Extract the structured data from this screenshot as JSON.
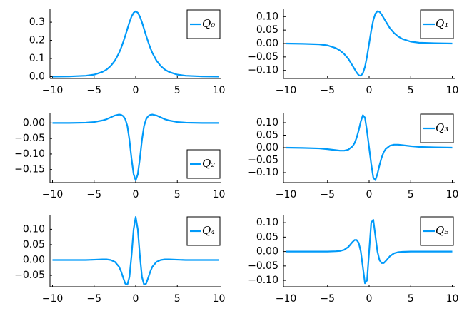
{
  "chart_data": [
    {
      "type": "line",
      "x": [
        -10,
        -8,
        -6,
        -5,
        -4,
        -3.5,
        -3,
        -2.5,
        -2,
        -1.75,
        -1.5,
        -1.25,
        -1,
        -0.75,
        -0.5,
        -0.25,
        0,
        0.25,
        0.5,
        0.75,
        1,
        1.25,
        1.5,
        1.75,
        2,
        2.5,
        3,
        3.5,
        4,
        5,
        6,
        8,
        10
      ],
      "series": [
        {
          "name": "Q₀",
          "color": "#009af9",
          "values": [
            0,
            0.001,
            0.005,
            0.011,
            0.026,
            0.039,
            0.059,
            0.088,
            0.131,
            0.159,
            0.191,
            0.226,
            0.263,
            0.3,
            0.331,
            0.352,
            0.36,
            0.352,
            0.331,
            0.3,
            0.263,
            0.226,
            0.191,
            0.159,
            0.131,
            0.088,
            0.059,
            0.039,
            0.026,
            0.011,
            0.005,
            0.001,
            0
          ]
        }
      ],
      "xlim": [
        -10.3,
        10.3
      ],
      "xticks": [
        {
          "value": -10,
          "label": "−10"
        },
        {
          "value": -5,
          "label": "−5"
        },
        0,
        5,
        10
      ],
      "ylim": [
        -0.01,
        0.375
      ],
      "yticks": [
        {
          "value": 0,
          "label": "0.0"
        },
        0.1,
        0.2,
        0.3
      ],
      "grid": false,
      "legend": "top-right"
    },
    {
      "type": "line",
      "x": [
        -10,
        -8,
        -6,
        -5,
        -4,
        -3.5,
        -3,
        -2.5,
        -2,
        -1.75,
        -1.5,
        -1.25,
        -1,
        -0.75,
        -0.5,
        -0.25,
        0,
        0.25,
        0.5,
        0.75,
        1,
        1.25,
        1.5,
        1.75,
        2,
        2.5,
        3,
        3.5,
        4,
        5,
        6,
        8,
        10
      ],
      "series": [
        {
          "name": "Q₁",
          "color": "#009af9",
          "values": [
            0,
            -0.001,
            -0.003,
            -0.007,
            -0.017,
            -0.026,
            -0.039,
            -0.057,
            -0.082,
            -0.095,
            -0.108,
            -0.118,
            -0.12,
            -0.111,
            -0.087,
            -0.048,
            0,
            0.048,
            0.087,
            0.111,
            0.12,
            0.118,
            0.108,
            0.095,
            0.082,
            0.057,
            0.039,
            0.026,
            0.017,
            0.007,
            0.003,
            0.001,
            0
          ]
        }
      ],
      "xlim": [
        -10.3,
        10.3
      ],
      "xticks": [
        {
          "value": -10,
          "label": "−10"
        },
        {
          "value": -5,
          "label": "−5"
        },
        0,
        5,
        10
      ],
      "ylim": [
        -0.13,
        0.13
      ],
      "yticks": [
        {
          "value": -0.1,
          "label": "−0.10"
        },
        {
          "value": -0.05,
          "label": "−0.05"
        },
        {
          "value": 0,
          "label": "0.00"
        },
        {
          "value": 0.05,
          "label": "0.05"
        },
        {
          "value": 0.1,
          "label": "0.10"
        }
      ],
      "grid": false,
      "legend": "top-right"
    },
    {
      "type": "line",
      "x": [
        -10,
        -8,
        -6,
        -5,
        -4,
        -3.5,
        -3,
        -2.5,
        -2,
        -1.75,
        -1.5,
        -1.25,
        -1,
        -0.75,
        -0.5,
        -0.25,
        0,
        0.25,
        0.5,
        0.75,
        1,
        1.25,
        1.5,
        1.75,
        2,
        2.5,
        3,
        3.5,
        4,
        5,
        6,
        8,
        10
      ],
      "series": [
        {
          "name": "Q₂",
          "color": "#009af9",
          "values": [
            0,
            0,
            0.001,
            0.003,
            0.008,
            0.012,
            0.018,
            0.024,
            0.027,
            0.026,
            0.022,
            0.012,
            -0.01,
            -0.055,
            -0.115,
            -0.165,
            -0.185,
            -0.165,
            -0.115,
            -0.055,
            -0.01,
            0.012,
            0.022,
            0.026,
            0.027,
            0.024,
            0.018,
            0.012,
            0.008,
            0.003,
            0.001,
            0,
            0
          ]
        }
      ],
      "xlim": [
        -10.3,
        10.3
      ],
      "xticks": [
        {
          "value": -10,
          "label": "−10"
        },
        {
          "value": -5,
          "label": "−5"
        },
        0,
        5,
        10
      ],
      "ylim": [
        -0.192,
        0.033
      ],
      "yticks": [
        {
          "value": -0.15,
          "label": "−0.15"
        },
        {
          "value": -0.1,
          "label": "−0.10"
        },
        {
          "value": -0.05,
          "label": "−0.05"
        },
        {
          "value": 0,
          "label": "0.00"
        }
      ],
      "grid": false,
      "legend": "bottom-right"
    },
    {
      "type": "line",
      "x": [
        -10,
        -8,
        -6,
        -5,
        -4,
        -3.5,
        -3,
        -2.5,
        -2,
        -1.75,
        -1.5,
        -1.25,
        -1,
        -0.75,
        -0.5,
        -0.25,
        0,
        0.25,
        0.5,
        0.75,
        1,
        1.25,
        1.5,
        1.75,
        2,
        2.5,
        3,
        3.5,
        4,
        5,
        6,
        8,
        10
      ],
      "series": [
        {
          "name": "Q₃",
          "color": "#009af9",
          "values": [
            0,
            -0.001,
            -0.003,
            -0.006,
            -0.01,
            -0.012,
            -0.012,
            -0.008,
            0.005,
            0.018,
            0.04,
            0.07,
            0.105,
            0.13,
            0.12,
            0.065,
            0,
            -0.065,
            -0.12,
            -0.13,
            -0.105,
            -0.07,
            -0.04,
            -0.018,
            -0.005,
            0.008,
            0.012,
            0.012,
            0.01,
            0.006,
            0.003,
            0.001,
            0
          ]
        }
      ],
      "xlim": [
        -10.3,
        10.3
      ],
      "xticks": [
        {
          "value": -10,
          "label": "−10"
        },
        {
          "value": -5,
          "label": "−5"
        },
        0,
        5,
        10
      ],
      "ylim": [
        -0.14,
        0.14
      ],
      "yticks": [
        {
          "value": -0.1,
          "label": "−0.10"
        },
        {
          "value": -0.05,
          "label": "−0.05"
        },
        {
          "value": 0,
          "label": "0.00"
        },
        {
          "value": 0.05,
          "label": "0.05"
        },
        {
          "value": 0.1,
          "label": "0.10"
        }
      ],
      "grid": false,
      "legend": "top-right"
    },
    {
      "type": "line",
      "x": [
        -10,
        -8,
        -6,
        -5,
        -4,
        -3.5,
        -3,
        -2.5,
        -2,
        -1.75,
        -1.5,
        -1.25,
        -1,
        -0.75,
        -0.5,
        -0.25,
        0,
        0.25,
        0.5,
        0.75,
        1,
        1.25,
        1.5,
        1.75,
        2,
        2.5,
        3,
        3.5,
        4,
        5,
        6,
        8,
        10
      ],
      "series": [
        {
          "name": "Q₄",
          "color": "#009af9",
          "values": [
            0,
            0,
            0,
            0.001,
            0.002,
            0.002,
            0,
            -0.006,
            -0.022,
            -0.038,
            -0.058,
            -0.077,
            -0.08,
            -0.055,
            0.015,
            0.1,
            0.14,
            0.1,
            0.015,
            -0.055,
            -0.08,
            -0.077,
            -0.058,
            -0.038,
            -0.022,
            -0.006,
            0,
            0.002,
            0.002,
            0.001,
            0,
            0,
            0
          ]
        }
      ],
      "xlim": [
        -10.3,
        10.3
      ],
      "xticks": [
        {
          "value": -10,
          "label": "−10"
        },
        {
          "value": -5,
          "label": "−5"
        },
        0,
        5,
        10
      ],
      "ylim": [
        -0.087,
        0.145
      ],
      "yticks": [
        {
          "value": -0.05,
          "label": "−0.05"
        },
        {
          "value": 0,
          "label": "0.00"
        },
        {
          "value": 0.05,
          "label": "0.05"
        },
        {
          "value": 0.1,
          "label": "0.10"
        }
      ],
      "grid": false,
      "legend": "top-right"
    },
    {
      "type": "line",
      "x": [
        -10,
        -8,
        -6,
        -5,
        -4,
        -3.5,
        -3,
        -2.5,
        -2,
        -1.75,
        -1.5,
        -1.25,
        -1,
        -0.75,
        -0.5,
        -0.25,
        0,
        0.25,
        0.5,
        0.75,
        1,
        1.25,
        1.5,
        1.75,
        2,
        2.5,
        3,
        3.5,
        4,
        5,
        6,
        8,
        10
      ],
      "series": [
        {
          "name": "Q₅",
          "color": "#009af9",
          "values": [
            0,
            0,
            0,
            0,
            0.001,
            0.002,
            0.006,
            0.016,
            0.033,
            0.04,
            0.04,
            0.03,
            0,
            -0.055,
            -0.11,
            -0.1,
            0,
            0.1,
            0.11,
            0.055,
            0,
            -0.03,
            -0.04,
            -0.04,
            -0.033,
            -0.016,
            -0.006,
            -0.002,
            -0.001,
            0,
            0,
            0,
            0
          ]
        }
      ],
      "xlim": [
        -10.3,
        10.3
      ],
      "xticks": [
        {
          "value": -10,
          "label": "−10"
        },
        {
          "value": -5,
          "label": "−5"
        },
        0,
        5,
        10
      ],
      "ylim": [
        -0.122,
        0.125
      ],
      "yticks": [
        {
          "value": -0.1,
          "label": "−0.10"
        },
        {
          "value": -0.05,
          "label": "−0.05"
        },
        {
          "value": 0,
          "label": "0.00"
        },
        {
          "value": 0.05,
          "label": "0.05"
        },
        {
          "value": 0.1,
          "label": "0.10"
        }
      ],
      "grid": false,
      "legend": "top-right"
    }
  ]
}
